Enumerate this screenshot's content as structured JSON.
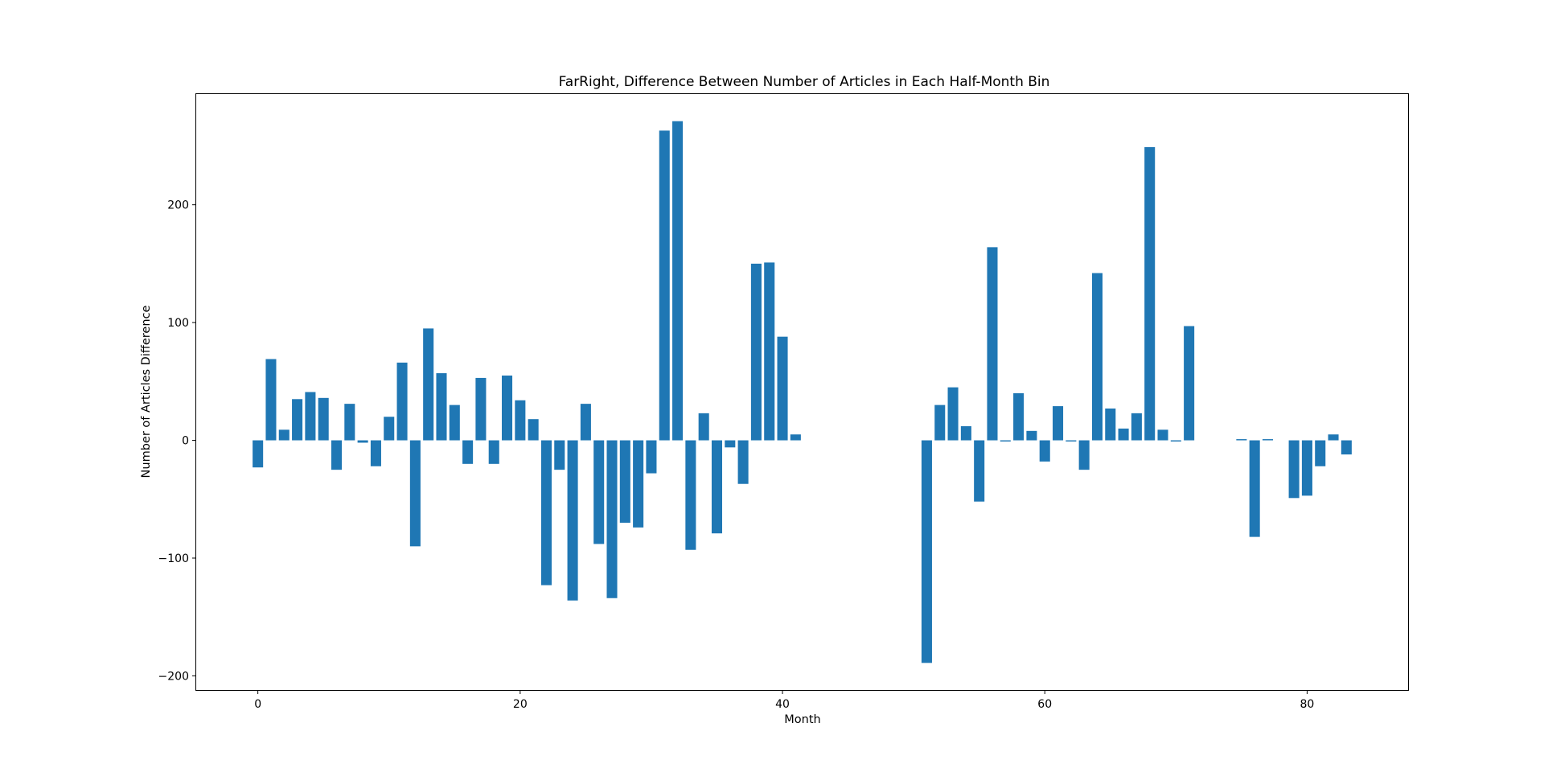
{
  "chart_data": {
    "type": "bar",
    "title": "FarRight, Difference Between Number of Articles in Each Half-Month Bin",
    "xlabel": "Month",
    "ylabel": "Number of Articles Difference",
    "xlim": [
      -4.7,
      87.7
    ],
    "ylim": [
      -212,
      294
    ],
    "x_ticks": [
      0,
      20,
      40,
      60,
      80
    ],
    "y_ticks": [
      -200,
      -100,
      0,
      100,
      200
    ],
    "x_tick_labels": [
      "0",
      "20",
      "40",
      "60",
      "80"
    ],
    "y_tick_labels": [
      "−200",
      "−100",
      "0",
      "100",
      "200"
    ],
    "bar_width": 0.8,
    "color": "#1f77b4",
    "grid": false,
    "legend": "none",
    "x": [
      0,
      1,
      2,
      3,
      4,
      5,
      6,
      7,
      8,
      9,
      10,
      11,
      12,
      13,
      14,
      15,
      16,
      17,
      18,
      19,
      20,
      21,
      22,
      23,
      24,
      25,
      26,
      27,
      28,
      29,
      30,
      31,
      32,
      33,
      34,
      35,
      36,
      37,
      38,
      39,
      40,
      41,
      51,
      52,
      53,
      54,
      55,
      56,
      57,
      58,
      59,
      60,
      61,
      62,
      63,
      64,
      65,
      66,
      67,
      68,
      69,
      70,
      71,
      75,
      76,
      77,
      79,
      80,
      81,
      82,
      83
    ],
    "values": [
      -23,
      69,
      9,
      35,
      41,
      36,
      -25,
      31,
      -2,
      -22,
      20,
      66,
      -90,
      95,
      57,
      30,
      -20,
      53,
      -20,
      55,
      34,
      18,
      -123,
      -25,
      -136,
      31,
      -88,
      -134,
      -70,
      -74,
      -28,
      263,
      271,
      -93,
      23,
      -79,
      -6,
      -37,
      150,
      151,
      88,
      5,
      -189,
      30,
      45,
      12,
      -52,
      164,
      -1,
      40,
      8,
      -18,
      29,
      -1,
      -25,
      142,
      27,
      10,
      23,
      249,
      9,
      -1,
      97,
      1,
      -82,
      1,
      -49,
      -47,
      -22,
      5,
      -12
    ]
  }
}
